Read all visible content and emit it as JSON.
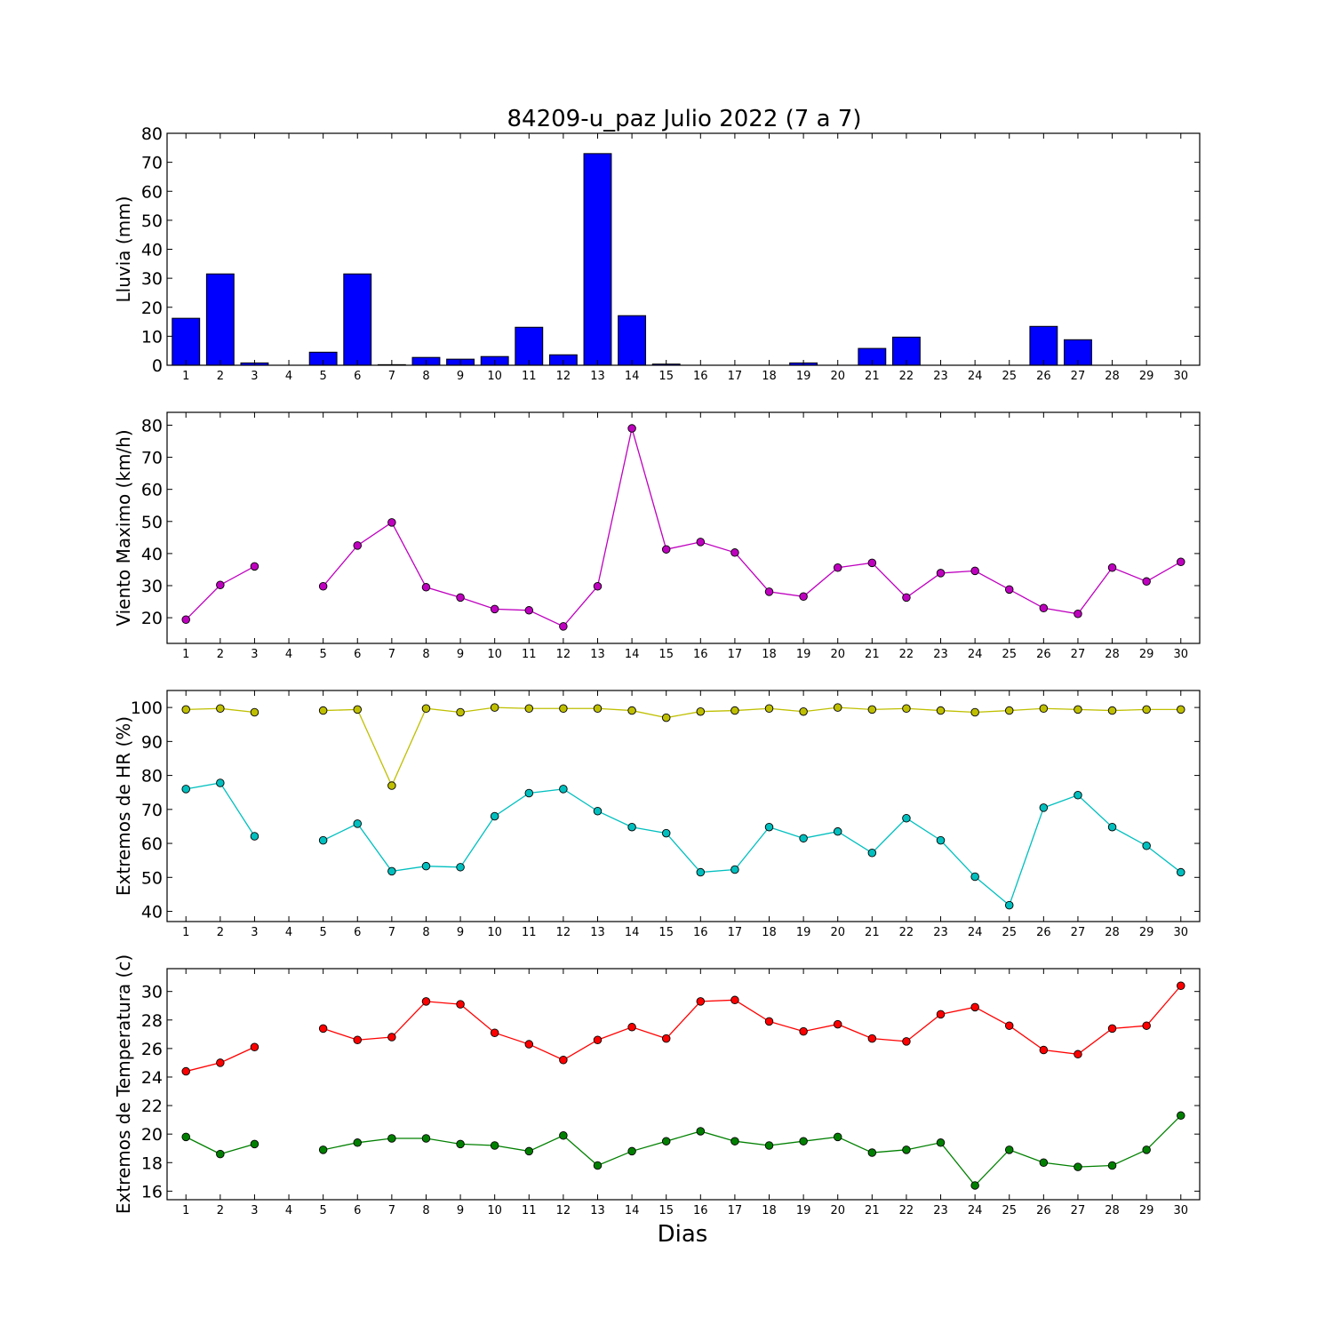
{
  "figure": {
    "title": "84209-u_paz Julio 2022  (7 a 7)",
    "xlabel": "Dias"
  },
  "chart_data": [
    {
      "type": "bar",
      "ylabel": "Lluvia (mm)",
      "ylim": [
        0,
        80
      ],
      "yticks": [
        0,
        10,
        20,
        30,
        40,
        50,
        60,
        70,
        80
      ],
      "categories": [
        "1",
        "2",
        "3",
        "4",
        "5",
        "6",
        "7",
        "8",
        "9",
        "10",
        "11",
        "12",
        "13",
        "14",
        "15",
        "16",
        "17",
        "18",
        "19",
        "20",
        "21",
        "22",
        "23",
        "24",
        "25",
        "26",
        "27",
        "28",
        "29",
        "30"
      ],
      "series": [
        {
          "color": "#0000ff",
          "values": [
            16.2,
            31.5,
            0.8,
            0,
            4.5,
            31.5,
            0.2,
            2.7,
            2.1,
            3.0,
            13.1,
            3.6,
            73.0,
            17.1,
            0.4,
            0,
            0,
            0,
            0.8,
            0,
            5.8,
            9.7,
            0,
            0,
            0,
            13.4,
            8.8,
            0,
            0,
            0
          ]
        }
      ]
    },
    {
      "type": "line",
      "ylabel": "Viento Maximo (km/h)",
      "ylim": [
        12,
        84
      ],
      "yticks": [
        20,
        30,
        40,
        50,
        60,
        70,
        80
      ],
      "categories": [
        "1",
        "2",
        "3",
        "4",
        "5",
        "6",
        "7",
        "8",
        "9",
        "10",
        "11",
        "12",
        "13",
        "14",
        "15",
        "16",
        "17",
        "18",
        "19",
        "20",
        "21",
        "22",
        "23",
        "24",
        "25",
        "26",
        "27",
        "28",
        "29",
        "30"
      ],
      "series": [
        {
          "color": "#bf00bf",
          "values": [
            19.4,
            30.2,
            36.0,
            null,
            29.8,
            42.5,
            49.7,
            29.5,
            26.3,
            22.7,
            22.3,
            17.3,
            29.8,
            79.0,
            41.3,
            43.6,
            40.3,
            28.1,
            26.6,
            35.6,
            37.1,
            26.3,
            33.9,
            34.6,
            28.8,
            23.0,
            21.2,
            35.6,
            31.3,
            37.4
          ]
        }
      ]
    },
    {
      "type": "line",
      "ylabel": "Extremos de HR (%)",
      "ylim": [
        37,
        105
      ],
      "yticks": [
        40,
        50,
        60,
        70,
        80,
        90,
        100
      ],
      "categories": [
        "1",
        "2",
        "3",
        "4",
        "5",
        "6",
        "7",
        "8",
        "9",
        "10",
        "11",
        "12",
        "13",
        "14",
        "15",
        "16",
        "17",
        "18",
        "19",
        "20",
        "21",
        "22",
        "23",
        "24",
        "25",
        "26",
        "27",
        "28",
        "29",
        "30"
      ],
      "series": [
        {
          "color": "#bfbf00",
          "values": [
            99.4,
            99.7,
            98.6,
            null,
            99.1,
            99.4,
            77.0,
            99.7,
            98.6,
            100.0,
            99.7,
            99.7,
            99.7,
            99.1,
            97.0,
            98.8,
            99.1,
            99.7,
            98.8,
            100.0,
            99.4,
            99.7,
            99.1,
            98.6,
            99.1,
            99.7,
            99.4,
            99.1,
            99.4,
            99.4
          ]
        },
        {
          "color": "#00bfbf",
          "values": [
            76.0,
            77.8,
            62.1,
            null,
            60.9,
            65.8,
            51.8,
            53.3,
            53.0,
            68.0,
            74.8,
            76.0,
            69.5,
            64.8,
            63.0,
            51.5,
            52.3,
            64.8,
            61.5,
            63.5,
            57.2,
            67.4,
            60.9,
            50.2,
            41.8,
            70.5,
            74.2,
            64.8,
            59.3,
            51.5
          ]
        }
      ]
    },
    {
      "type": "line",
      "ylabel": "Extremos de Temperatura (c)",
      "ylim": [
        15.4,
        31.6
      ],
      "yticks": [
        16,
        18,
        20,
        22,
        24,
        26,
        28,
        30
      ],
      "categories": [
        "1",
        "2",
        "3",
        "4",
        "5",
        "6",
        "7",
        "8",
        "9",
        "10",
        "11",
        "12",
        "13",
        "14",
        "15",
        "16",
        "17",
        "18",
        "19",
        "20",
        "21",
        "22",
        "23",
        "24",
        "25",
        "26",
        "27",
        "28",
        "29",
        "30"
      ],
      "series": [
        {
          "color": "#ff0000",
          "values": [
            24.4,
            25.0,
            26.1,
            null,
            27.4,
            26.6,
            26.8,
            29.3,
            29.1,
            27.1,
            26.3,
            25.2,
            26.6,
            27.5,
            26.7,
            29.3,
            29.4,
            27.9,
            27.2,
            27.7,
            26.7,
            26.5,
            28.4,
            28.9,
            27.6,
            25.9,
            25.6,
            27.4,
            27.6,
            30.4
          ]
        },
        {
          "color": "#008000",
          "values": [
            19.8,
            18.6,
            19.3,
            null,
            18.9,
            19.4,
            19.7,
            19.7,
            19.3,
            19.2,
            18.8,
            19.9,
            17.8,
            18.8,
            19.5,
            20.2,
            19.5,
            19.2,
            19.5,
            19.8,
            18.7,
            18.9,
            19.4,
            16.4,
            18.9,
            18.0,
            17.7,
            17.8,
            18.9,
            21.3
          ]
        }
      ]
    }
  ]
}
